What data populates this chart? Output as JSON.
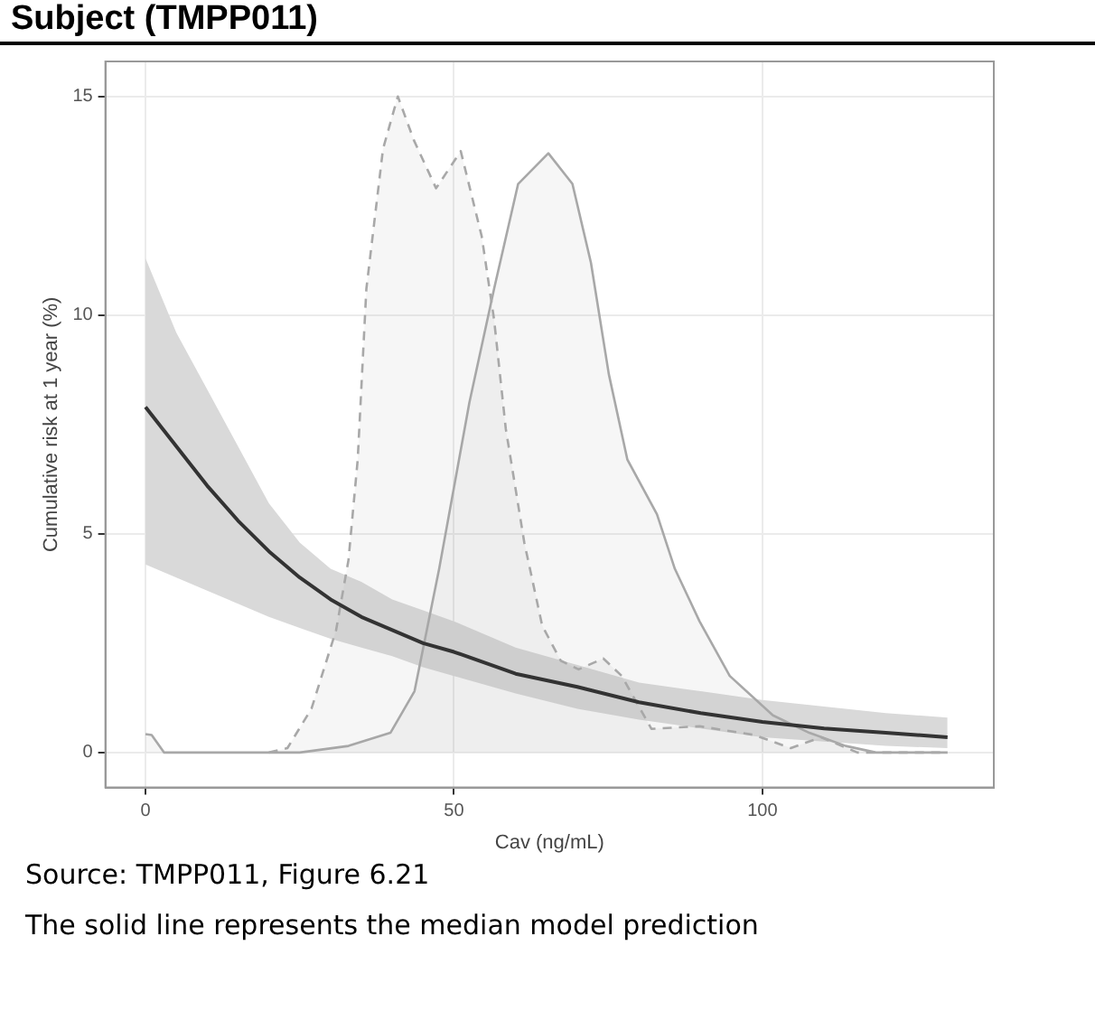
{
  "chart_data": {
    "type": "line",
    "title": "Subject (TMPP011)",
    "xlabel": "Cav (ng/mL)",
    "ylabel": "Cumulative risk at 1 year (%)",
    "xlim": [
      -6.5,
      137.5
    ],
    "ylim": [
      -0.8,
      15.8
    ],
    "xticks": [
      0,
      50,
      100
    ],
    "yticks": [
      0,
      5,
      10,
      15
    ],
    "grid": true,
    "legend": false,
    "marker": "none",
    "series": [
      {
        "type": "area",
        "color": "#a8a8a8",
        "line_style": "dashed",
        "x": [
          20,
          23,
          26.9,
          30.9,
          32.9,
          34.4,
          35.8,
          38.5,
          40.9,
          43.5,
          47.1,
          51.1,
          54.5,
          56.5,
          58.4,
          61.4,
          64.3,
          67.3,
          70.2,
          74.2,
          77.2,
          82,
          89.8,
          98.7,
          104.6,
          109.5,
          115.4,
          130
        ],
        "values": [
          0,
          0.1,
          1.0,
          2.8,
          4.4,
          6.7,
          10.6,
          13.8,
          15.0,
          14.0,
          12.9,
          13.75,
          11.8,
          9.9,
          7.4,
          4.8,
          2.9,
          2.1,
          1.9,
          2.15,
          1.75,
          0.54,
          0.6,
          0.4,
          0.1,
          0.35,
          0,
          0
        ]
      },
      {
        "type": "area",
        "color": "#a8a8a8",
        "line_style": "solid",
        "x": [
          0,
          1,
          3,
          10,
          25,
          32.9,
          39.7,
          43.6,
          47.6,
          52.5,
          56.5,
          60.4,
          65.3,
          69.2,
          72.2,
          75.1,
          78.1,
          82.9,
          85.8,
          89.8,
          94.7,
          101.7,
          107.6,
          113.5,
          118.4,
          130
        ],
        "values": [
          0.42,
          0.4,
          0,
          0,
          0,
          0.15,
          0.45,
          1.4,
          4.2,
          8.0,
          10.6,
          13.0,
          13.7,
          13.0,
          11.2,
          8.65,
          6.7,
          5.45,
          4.2,
          3.0,
          1.75,
          0.85,
          0.45,
          0.15,
          0,
          0
        ]
      },
      {
        "color": "#333333",
        "line_style": "solid",
        "x": [
          0,
          5,
          10,
          15,
          20,
          25,
          30,
          35,
          40,
          45,
          50,
          60,
          70,
          80,
          90,
          100,
          110,
          120,
          130
        ],
        "values": [
          7.9,
          7.0,
          6.1,
          5.3,
          4.6,
          4.0,
          3.5,
          3.1,
          2.8,
          2.5,
          2.3,
          1.8,
          1.5,
          1.15,
          0.9,
          0.7,
          0.55,
          0.45,
          0.35
        ],
        "upper": [
          11.3,
          9.6,
          8.3,
          7.0,
          5.7,
          4.8,
          4.2,
          3.9,
          3.5,
          3.25,
          3.0,
          2.4,
          2.0,
          1.6,
          1.4,
          1.2,
          1.05,
          0.9,
          0.8
        ],
        "lower": [
          4.3,
          4.0,
          3.7,
          3.4,
          3.1,
          2.85,
          2.6,
          2.4,
          2.2,
          1.95,
          1.75,
          1.35,
          1.0,
          0.75,
          0.55,
          0.35,
          0.25,
          0.15,
          0.1
        ]
      }
    ],
    "annotations": [
      "Source: TMPP011, Figure 6.21",
      "The solid line represents the median model prediction"
    ]
  }
}
